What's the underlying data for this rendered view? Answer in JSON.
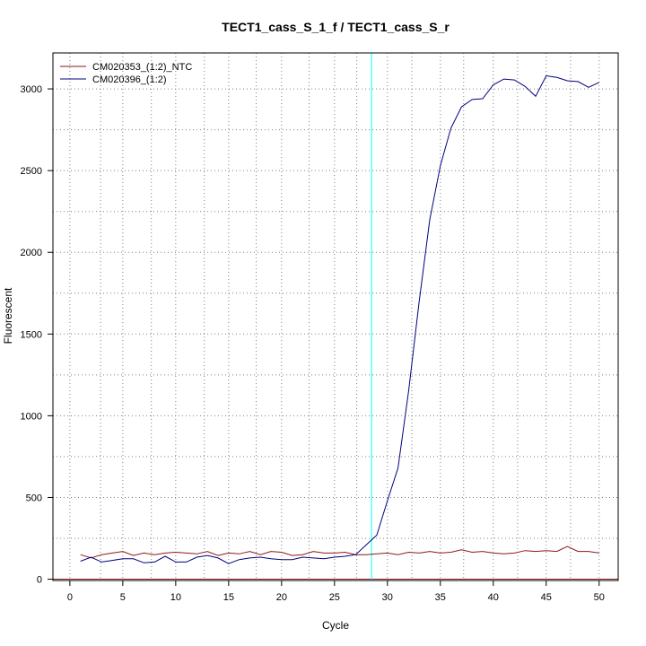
{
  "chart_data": {
    "type": "line",
    "title": "TECT1_cass_S_1_f / TECT1_cass_S_r",
    "xlabel": "Cycle",
    "ylabel": "Fluorescent",
    "xlim": [
      -1.6,
      51.8
    ],
    "ylim": [
      -8,
      3220
    ],
    "x_ticks": [
      0,
      5,
      10,
      15,
      20,
      25,
      30,
      35,
      40,
      45,
      50
    ],
    "y_ticks": [
      0,
      500,
      1000,
      1500,
      2000,
      2500,
      3000
    ],
    "x_minor_grid": [
      2.9,
      7.7,
      12.7,
      17.6,
      22.6,
      27.1,
      32.3,
      37.2,
      42.3,
      47.3
    ],
    "y_minor_grid": [
      250,
      750,
      1250,
      1750,
      2250,
      2750
    ],
    "grid": true,
    "legend_position": "top-left",
    "threshold_cycle": 28.5,
    "baseline_y": 0,
    "x": [
      1,
      2,
      3,
      4,
      5,
      6,
      7,
      8,
      9,
      10,
      11,
      12,
      13,
      14,
      15,
      16,
      17,
      18,
      19,
      20,
      21,
      22,
      23,
      24,
      25,
      26,
      27,
      28,
      29,
      30,
      31,
      32,
      33,
      34,
      35,
      36,
      37,
      38,
      39,
      40,
      41,
      42,
      43,
      44,
      45,
      46,
      47,
      48,
      49,
      50
    ],
    "series": [
      {
        "name": "CM020353_(1:2)_NTC",
        "color": "#8b1a1a",
        "values": [
          150,
          130,
          150,
          160,
          170,
          145,
          160,
          150,
          160,
          165,
          160,
          155,
          170,
          145,
          160,
          155,
          170,
          150,
          170,
          165,
          145,
          150,
          170,
          160,
          160,
          165,
          150,
          150,
          155,
          160,
          150,
          165,
          160,
          170,
          160,
          165,
          180,
          165,
          170,
          160,
          155,
          160,
          175,
          170,
          175,
          170,
          200,
          170,
          170,
          160
        ]
      },
      {
        "name": "CM020396_(1:2)",
        "color": "#00007f",
        "values": [
          110,
          135,
          105,
          115,
          125,
          125,
          100,
          105,
          140,
          105,
          105,
          135,
          145,
          130,
          95,
          120,
          130,
          135,
          125,
          120,
          120,
          135,
          130,
          125,
          135,
          140,
          150,
          210,
          270,
          480,
          680,
          1150,
          1700,
          2200,
          2530,
          2760,
          2890,
          2935,
          2940,
          3025,
          3060,
          3055,
          3015,
          2955,
          3080,
          3070,
          3050,
          3045,
          3010,
          3040
        ]
      }
    ],
    "threshold_color": "#00ffff",
    "baseline_color": "#8b1a1a"
  }
}
